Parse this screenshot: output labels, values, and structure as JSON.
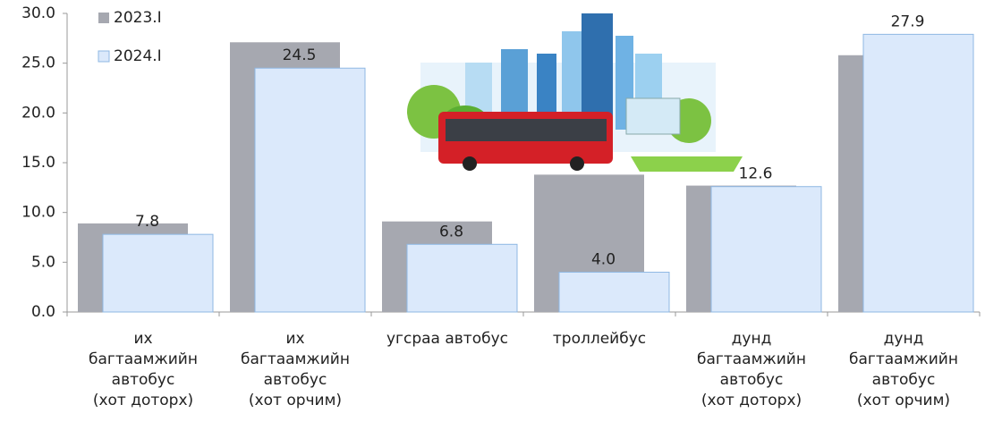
{
  "chart_data": {
    "type": "bar",
    "categories": [
      "их\nбагтаамжийн\nавтобус\n(хот доторх)",
      "их\nбагтаамжийн\nавтобус\n(хот орчим)",
      "угсраа автобус",
      "троллейбус",
      "дунд\nбагтаамжийн\nавтобус\n(хот доторх)",
      "дунд\nбагтаамжийн\nавтобус\n(хот орчим)"
    ],
    "series": [
      {
        "name": "2023.I",
        "color": "#a6a8b0",
        "values": [
          8.9,
          27.1,
          9.1,
          13.8,
          12.7,
          25.8
        ]
      },
      {
        "name": "2024.I",
        "color": "#dbe9fb",
        "stroke": "#8fb8e3",
        "values": [
          7.8,
          24.5,
          6.8,
          4.0,
          12.6,
          27.9
        ],
        "value_labels": [
          "7.8",
          "24.5",
          "6.8",
          "4.0",
          "12.6",
          "27.9"
        ]
      }
    ],
    "ylim": [
      0,
      30
    ],
    "yticks": [
      {
        "value": 0,
        "label": "0.0"
      },
      {
        "value": 5,
        "label": "5.0"
      },
      {
        "value": 10,
        "label": "10.0"
      },
      {
        "value": 15,
        "label": "15.0"
      },
      {
        "value": 20,
        "label": "20.0"
      },
      {
        "value": 25,
        "label": "25.0"
      },
      {
        "value": 30,
        "label": "30.0"
      }
    ],
    "legend": "top-left"
  }
}
